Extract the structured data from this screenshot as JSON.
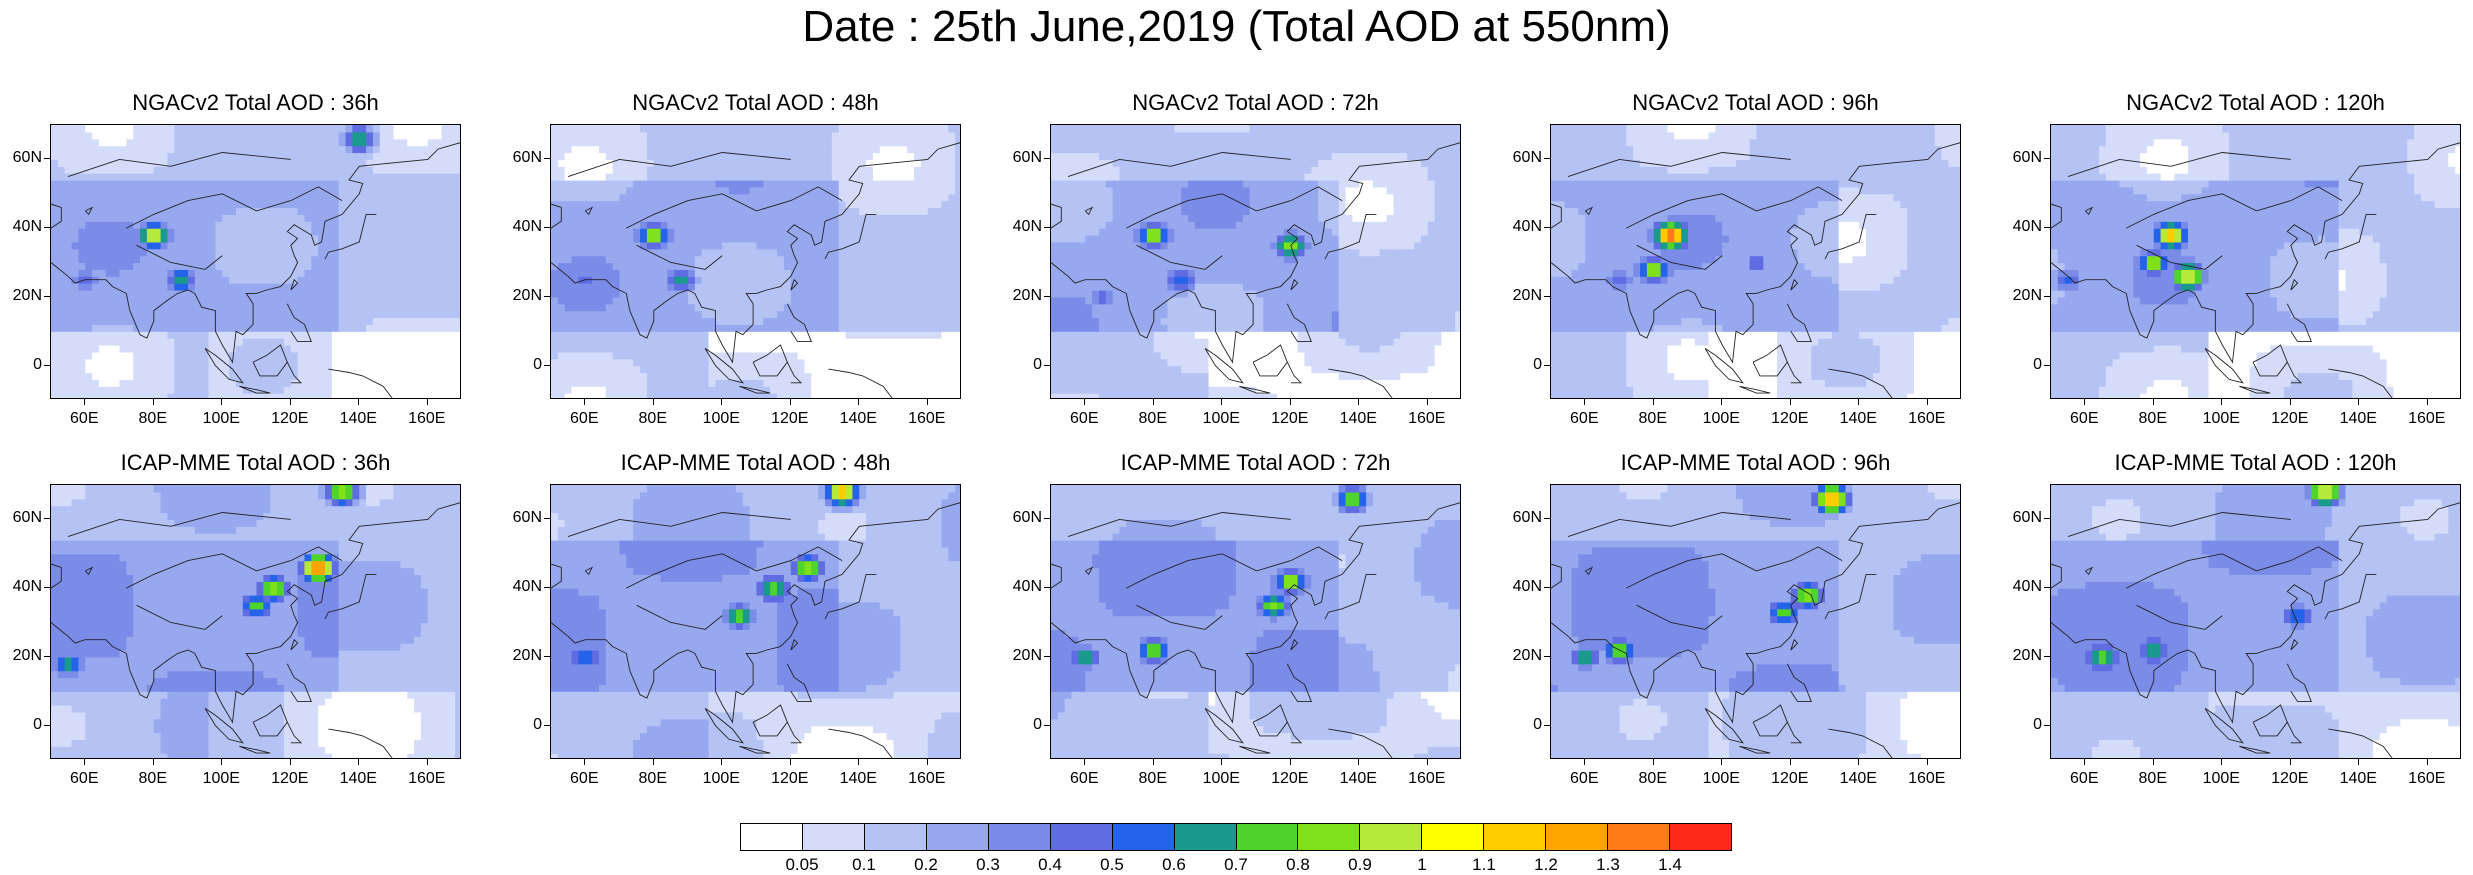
{
  "title": "Date : 25th June,2019 (Total AOD at 550nm)",
  "rows": [
    {
      "model": "NGACv2",
      "titles": [
        "NGACv2 Total AOD : 36h",
        "NGACv2 Total AOD : 48h",
        "NGACv2 Total AOD : 72h",
        "NGACv2 Total AOD : 96h",
        "NGACv2 Total AOD : 120h"
      ]
    },
    {
      "model": "ICAP-MME",
      "titles": [
        "ICAP-MME Total AOD : 36h",
        "ICAP-MME Total AOD : 48h",
        "ICAP-MME Total AOD : 72h",
        "ICAP-MME Total AOD : 96h",
        "ICAP-MME Total AOD : 120h"
      ]
    }
  ],
  "axes": {
    "lat_labels": [
      "60N",
      "40N",
      "20N",
      "0"
    ],
    "lat_values": [
      60,
      40,
      20,
      0
    ],
    "lon_labels": [
      "60E",
      "80E",
      "100E",
      "120E",
      "140E",
      "160E"
    ],
    "lon_values": [
      60,
      80,
      100,
      120,
      140,
      160
    ],
    "lon_range": [
      50,
      170
    ],
    "lat_range": [
      -10,
      70
    ]
  },
  "chart_data": {
    "type": "heatmap",
    "field": "Total AOD at 550nm",
    "date": "25th June,2019",
    "lead_times": [
      "36h",
      "48h",
      "72h",
      "96h",
      "120h"
    ],
    "models": [
      "NGACv2",
      "ICAP-MME"
    ],
    "colorbar": {
      "labels": [
        "0.05",
        "0.1",
        "0.2",
        "0.3",
        "0.4",
        "0.5",
        "0.6",
        "0.7",
        "0.8",
        "0.9",
        "1",
        "1.1",
        "1.2",
        "1.3",
        "1.4"
      ],
      "levels": [
        0.05,
        0.1,
        0.2,
        0.3,
        0.4,
        0.5,
        0.6,
        0.7,
        0.8,
        0.9,
        1,
        1.1,
        1.2,
        1.3,
        1.4
      ],
      "colors": [
        "#ffffff",
        "#d4dcfa",
        "#b4c2f4",
        "#97a8ef",
        "#7b8ce8",
        "#5f6ce2",
        "#2563eb",
        "#1a9a8c",
        "#4ed42a",
        "#7ee11a",
        "#b6ea3a",
        "#ffff00",
        "#ffcc00",
        "#ffa500",
        "#ff7b1a",
        "#ff2a1a"
      ]
    },
    "hotspots": [
      [
        [
          {
            "lon": 80,
            "lat": 38,
            "v": 1.0
          },
          {
            "lon": 88,
            "lat": 25,
            "v": 0.7
          },
          {
            "lon": 60,
            "lat": 25,
            "v": 0.45
          },
          {
            "lon": 140,
            "lat": 66,
            "v": 0.75
          }
        ],
        [
          {
            "lon": 80,
            "lat": 38,
            "v": 0.9
          },
          {
            "lon": 88,
            "lat": 25,
            "v": 0.65
          },
          {
            "lon": 60,
            "lat": 25,
            "v": 0.45
          }
        ],
        [
          {
            "lon": 80,
            "lat": 38,
            "v": 0.9
          },
          {
            "lon": 88,
            "lat": 25,
            "v": 0.6
          },
          {
            "lon": 120,
            "lat": 35,
            "v": 0.9
          },
          {
            "lon": 65,
            "lat": 20,
            "v": 0.45
          }
        ],
        [
          {
            "lon": 85,
            "lat": 38,
            "v": 1.4
          },
          {
            "lon": 80,
            "lat": 28,
            "v": 0.9
          },
          {
            "lon": 70,
            "lat": 25,
            "v": 0.5
          },
          {
            "lon": 110,
            "lat": 30,
            "v": 0.45
          }
        ],
        [
          {
            "lon": 85,
            "lat": 38,
            "v": 1.2
          },
          {
            "lon": 90,
            "lat": 26,
            "v": 1.1
          },
          {
            "lon": 80,
            "lat": 30,
            "v": 0.9
          },
          {
            "lon": 55,
            "lat": 25,
            "v": 0.5
          }
        ]
      ],
      [
        [
          {
            "lon": 128,
            "lat": 46,
            "v": 1.4
          },
          {
            "lon": 115,
            "lat": 40,
            "v": 0.9
          },
          {
            "lon": 110,
            "lat": 35,
            "v": 0.8
          },
          {
            "lon": 55,
            "lat": 18,
            "v": 0.7
          },
          {
            "lon": 135,
            "lat": 68,
            "v": 0.9
          }
        ],
        [
          {
            "lon": 125,
            "lat": 46,
            "v": 0.9
          },
          {
            "lon": 115,
            "lat": 40,
            "v": 0.85
          },
          {
            "lon": 105,
            "lat": 32,
            "v": 0.8
          },
          {
            "lon": 60,
            "lat": 20,
            "v": 0.65
          },
          {
            "lon": 135,
            "lat": 68,
            "v": 1.2
          }
        ],
        [
          {
            "lon": 120,
            "lat": 42,
            "v": 0.9
          },
          {
            "lon": 115,
            "lat": 35,
            "v": 0.85
          },
          {
            "lon": 80,
            "lat": 22,
            "v": 0.8
          },
          {
            "lon": 60,
            "lat": 20,
            "v": 0.7
          },
          {
            "lon": 138,
            "lat": 66,
            "v": 0.85
          }
        ],
        [
          {
            "lon": 125,
            "lat": 38,
            "v": 0.9
          },
          {
            "lon": 118,
            "lat": 33,
            "v": 0.8
          },
          {
            "lon": 70,
            "lat": 22,
            "v": 0.85
          },
          {
            "lon": 60,
            "lat": 20,
            "v": 0.7
          },
          {
            "lon": 132,
            "lat": 66,
            "v": 1.3
          }
        ],
        [
          {
            "lon": 65,
            "lat": 20,
            "v": 0.85
          },
          {
            "lon": 80,
            "lat": 22,
            "v": 0.75
          },
          {
            "lon": 122,
            "lat": 32,
            "v": 0.65
          },
          {
            "lon": 130,
            "lat": 68,
            "v": 1.1
          }
        ]
      ]
    ]
  }
}
